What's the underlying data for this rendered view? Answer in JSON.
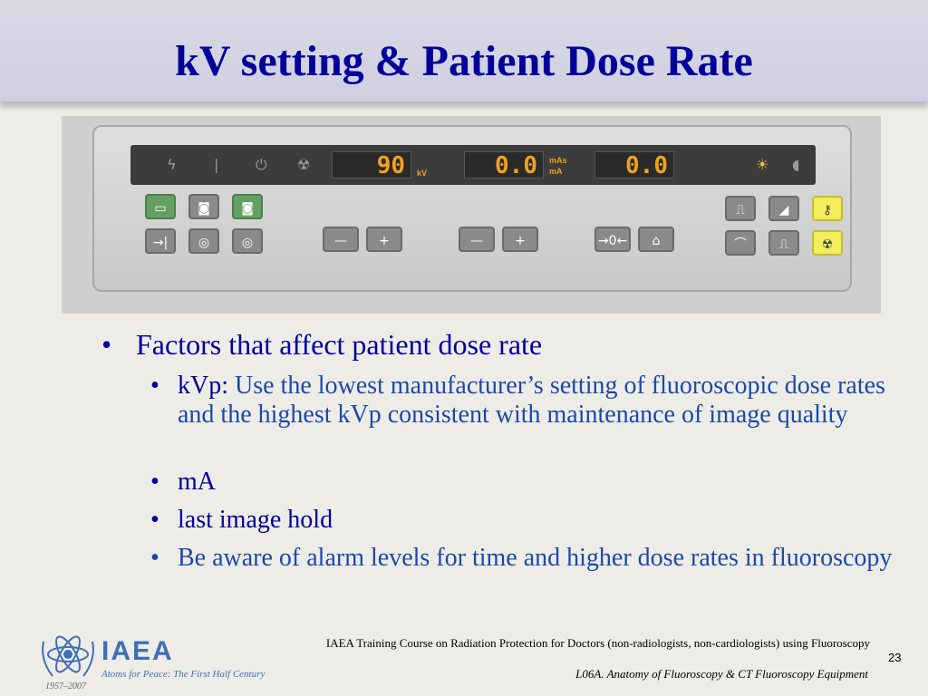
{
  "slide": {
    "title": "kV setting & Patient Dose Rate",
    "panel": {
      "kv_value": "90",
      "kv_unit": "kV",
      "ma_value": "0.0",
      "ma_units_top": "mAs",
      "ma_units_bottom": "mA",
      "time_value": "0.0",
      "minus": "—",
      "plus": "+"
    },
    "bullet_main": "Factors that affect patient dose rate",
    "sub_bullets": {
      "kvp_lead": "kVp:",
      "kvp_rest": " Use the lowest manufacturer’s setting of fluoroscopic dose rates and the highest kVp consistent with maintenance of image quality",
      "ma": "mA",
      "last_image_hold": "last image hold",
      "alarm": "Be aware of alarm levels for time and higher dose rates in fluoroscopy"
    }
  },
  "footer": {
    "org": "IAEA",
    "motto": "Atoms for Peace: The First Half Century",
    "years": "1957–2007",
    "course": "IAEA Training Course on Radiation Protection for Doctors (non-radiologists, non-cardiologists) using Fluoroscopy",
    "lecture": "L06A. Anatomy of Fluoroscopy & CT Fluoroscopy Equipment",
    "page_number": "23"
  }
}
